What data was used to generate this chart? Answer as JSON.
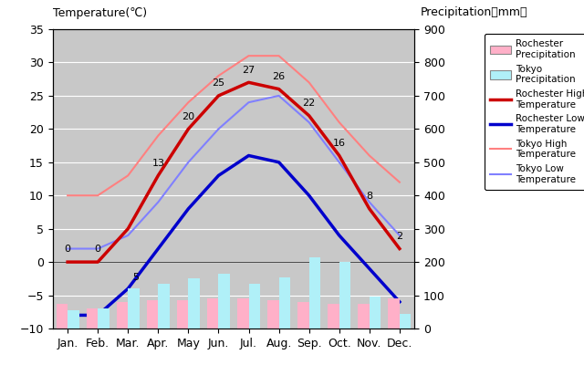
{
  "months": [
    "Jan.",
    "Feb.",
    "Mar.",
    "Apr.",
    "May",
    "Jun.",
    "Jul.",
    "Aug.",
    "Sep.",
    "Oct.",
    "Nov.",
    "Dec."
  ],
  "rochester_high": [
    0,
    0,
    5,
    13,
    20,
    25,
    27,
    26,
    22,
    16,
    8,
    2
  ],
  "rochester_low": [
    -8,
    -8,
    -4,
    2,
    8,
    13,
    16,
    15,
    10,
    4,
    -1,
    -6
  ],
  "tokyo_high": [
    10,
    10,
    13,
    19,
    24,
    28,
    31,
    31,
    27,
    21,
    16,
    12
  ],
  "tokyo_low": [
    2,
    2,
    4,
    9,
    15,
    20,
    24,
    25,
    21,
    15,
    9,
    4
  ],
  "rochester_precip_mm": [
    75,
    60,
    80,
    85,
    85,
    90,
    90,
    85,
    80,
    75,
    75,
    90
  ],
  "tokyo_precip_mm": [
    55,
    60,
    120,
    135,
    150,
    165,
    135,
    155,
    215,
    200,
    95,
    45
  ],
  "temp_ylim": [
    -10,
    35
  ],
  "precip_ylim": [
    0,
    900
  ],
  "temp_yticks": [
    -10,
    -5,
    0,
    5,
    10,
    15,
    20,
    25,
    30,
    35
  ],
  "precip_yticks": [
    0,
    100,
    200,
    300,
    400,
    500,
    600,
    700,
    800,
    900
  ],
  "bg_color": "#c8c8c8",
  "rochester_high_color": "#cc0000",
  "rochester_low_color": "#0000cc",
  "tokyo_high_color": "#ff8080",
  "tokyo_low_color": "#8080ff",
  "rochester_precip_color": "#ffb0c8",
  "tokyo_precip_color": "#b0f0f8",
  "title_left": "Temperature(℃)",
  "title_right": "Precipitation（mm）",
  "rh_label_points": [
    0,
    1,
    3,
    4,
    5,
    6,
    7,
    8,
    9,
    10,
    11
  ],
  "rh_labels": [
    "0",
    "0",
    "13",
    "20",
    "25",
    "27",
    "26",
    "22",
    "16",
    "8",
    "2"
  ],
  "rl_label_idx": 2,
  "rl_label_val": "5",
  "figsize": [
    6.4,
    4.0
  ],
  "dpi": 100
}
